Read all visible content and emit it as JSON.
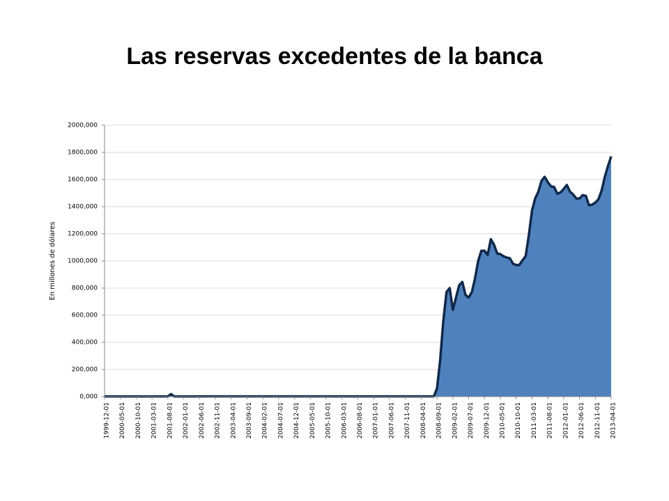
{
  "chart_data": {
    "type": "area",
    "title": "Las reservas excedentes de la banca",
    "y_label": "En millones de dólares",
    "categories": [
      "1999-12-01",
      null,
      null,
      null,
      null,
      "2000-05-01",
      null,
      null,
      null,
      null,
      "2000-10-01",
      null,
      null,
      null,
      null,
      "2001-03-01",
      null,
      null,
      null,
      null,
      "2001-08-01",
      null,
      null,
      null,
      null,
      "2002-01-01",
      null,
      null,
      null,
      null,
      "2002-06-01",
      null,
      null,
      null,
      null,
      "2002-11-01",
      null,
      null,
      null,
      null,
      "2003-04-01",
      null,
      null,
      null,
      null,
      "2003-09-01",
      null,
      null,
      null,
      null,
      "2004-02-01",
      null,
      null,
      null,
      null,
      "2004-07-01",
      null,
      null,
      null,
      null,
      "2004-12-01",
      null,
      null,
      null,
      null,
      "2005-05-01",
      null,
      null,
      null,
      null,
      "2005-10-01",
      null,
      null,
      null,
      null,
      "2006-03-01",
      null,
      null,
      null,
      null,
      "2006-08-01",
      null,
      null,
      null,
      null,
      "2007-01-01",
      null,
      null,
      null,
      null,
      "2007-06-01",
      null,
      null,
      null,
      null,
      "2007-11-01",
      null,
      null,
      null,
      null,
      "2008-04-01",
      null,
      null,
      null,
      null,
      "2008-09-01",
      null,
      null,
      null,
      null,
      "2009-02-01",
      null,
      null,
      null,
      null,
      "2009-07-01",
      null,
      null,
      null,
      null,
      "2009-12-01",
      null,
      null,
      null,
      null,
      "2010-05-01",
      null,
      null,
      null,
      null,
      "2010-10-01",
      null,
      null,
      null,
      null,
      "2011-03-01",
      null,
      null,
      null,
      null,
      "2011-08-01",
      null,
      null,
      null,
      null,
      "2012-01-01",
      null,
      null,
      null,
      null,
      "2012-06-01",
      null,
      null,
      null,
      null,
      "2012-11-01",
      null,
      null,
      null,
      null,
      "2013-04-01"
    ],
    "values": [
      1500,
      1400,
      1300,
      1200,
      1100,
      1000,
      1100,
      1200,
      1100,
      1000,
      1100,
      1000,
      900,
      1100,
      1200,
      1300,
      1200,
      1100,
      1000,
      1200,
      1700,
      19000,
      1500,
      1300,
      1200,
      1300,
      1400,
      1300,
      1500,
      1600,
      1700,
      1600,
      1800,
      2000,
      1900,
      1800,
      1700,
      1900,
      2000,
      1800,
      1700,
      1800,
      1900,
      2000,
      1900,
      1800,
      1700,
      1800,
      1900,
      2000,
      1800,
      1700,
      1600,
      1700,
      1800,
      1900,
      1800,
      1700,
      1800,
      1900,
      1900,
      1800,
      1700,
      1800,
      1900,
      2000,
      1900,
      1800,
      1700,
      1800,
      1900,
      1800,
      1700,
      1600,
      1700,
      1800,
      1900,
      1800,
      1700,
      1600,
      1700,
      1800,
      1900,
      1800,
      1700,
      1600,
      1700,
      1800,
      1900,
      1800,
      1700,
      1800,
      1900,
      2000,
      1900,
      1800,
      1700,
      1800,
      1900,
      2000,
      1800,
      1900,
      2000,
      1800,
      2000,
      60000,
      270000,
      560000,
      770000,
      800000,
      640000,
      730000,
      820000,
      845000,
      750000,
      730000,
      770000,
      870000,
      1000000,
      1075000,
      1075000,
      1045000,
      1160000,
      1120000,
      1055000,
      1050000,
      1035000,
      1025000,
      1020000,
      980000,
      970000,
      970000,
      1005000,
      1035000,
      1190000,
      1370000,
      1460000,
      1510000,
      1590000,
      1620000,
      1580000,
      1550000,
      1545000,
      1495000,
      1505000,
      1530000,
      1560000,
      1510000,
      1490000,
      1460000,
      1460000,
      1485000,
      1480000,
      1410000,
      1415000,
      1430000,
      1455000,
      1520000,
      1620000,
      1700000,
      1770000
    ],
    "color": "#4f81bd",
    "line_color": "#10294a",
    "ylim": [
      0,
      2000000
    ],
    "yticks": [
      {
        "value": 0,
        "label": "0,000"
      },
      {
        "value": 200000,
        "label": "200,000"
      },
      {
        "value": 400000,
        "label": "400,000"
      },
      {
        "value": 600000,
        "label": "600,000"
      },
      {
        "value": 800000,
        "label": "800,000"
      },
      {
        "value": 1000000,
        "label": "1000,000"
      },
      {
        "value": 1200000,
        "label": "1200,000"
      },
      {
        "value": 1400000,
        "label": "1400,000"
      },
      {
        "value": 1600000,
        "label": "1600,000"
      },
      {
        "value": 1800000,
        "label": "1800,000"
      },
      {
        "value": 2000000,
        "label": "2000,000"
      }
    ],
    "grid": true
  }
}
